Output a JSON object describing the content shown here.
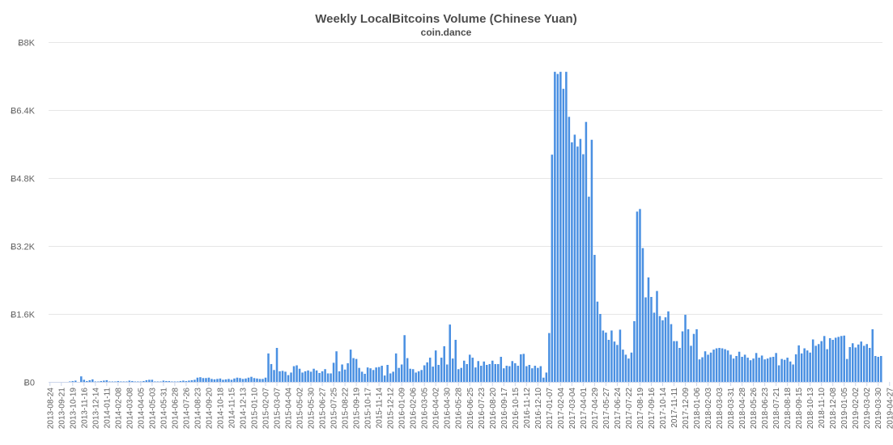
{
  "chart_data": {
    "type": "bar",
    "title": "Weekly LocalBitcoins Volume (Chinese Yuan)",
    "subtitle": "coin.dance",
    "color": "#4a90e2",
    "ylim": [
      0,
      8000
    ],
    "y_ticks": [
      0,
      1600,
      3200,
      4800,
      6400,
      8000
    ],
    "y_tick_labels": [
      "Ƀ0",
      "Ƀ1.6K",
      "Ƀ3.2K",
      "Ƀ4.8K",
      "Ƀ6.4K",
      "Ƀ8K"
    ],
    "x_labels": [
      "2013-08-24",
      "2013-09-21",
      "2013-10-19",
      "2013-11-16",
      "2013-12-14",
      "2014-01-11",
      "2014-02-08",
      "2014-03-08",
      "2014-04-05",
      "2014-05-03",
      "2014-05-31",
      "2014-06-28",
      "2014-07-26",
      "2014-08-23",
      "2014-09-20",
      "2014-10-18",
      "2014-11-15",
      "2014-12-13",
      "2015-01-10",
      "2015-02-07",
      "2015-03-07",
      "2015-04-04",
      "2015-05-02",
      "2015-05-30",
      "2015-06-27",
      "2015-07-25",
      "2015-08-22",
      "2015-09-19",
      "2015-10-17",
      "2015-11-14",
      "2015-12-12",
      "2016-01-09",
      "2016-02-06",
      "2016-03-05",
      "2016-04-02",
      "2016-04-30",
      "2016-05-28",
      "2016-06-25",
      "2016-07-23",
      "2016-08-20",
      "2016-09-17",
      "2016-10-15",
      "2016-11-12",
      "2016-12-10",
      "2017-01-07",
      "2017-02-04",
      "2017-03-04",
      "2017-04-01",
      "2017-04-29",
      "2017-05-27",
      "2017-06-24",
      "2017-07-22",
      "2017-08-19",
      "2017-09-16",
      "2017-10-14",
      "2017-11-11",
      "2017-12-09",
      "2018-01-06",
      "2018-02-03",
      "2018-03-03",
      "2018-03-31",
      "2018-04-28",
      "2018-05-26",
      "2018-06-23",
      "2018-07-21",
      "2018-08-18",
      "2018-09-15",
      "2018-10-13",
      "2018-11-10",
      "2018-12-08",
      "2019-01-05",
      "2019-02-02",
      "2019-03-02",
      "2019-03-30",
      "2019-04-27"
    ],
    "weekly_values": [
      0,
      0,
      0,
      0,
      0,
      0,
      0,
      10,
      20,
      30,
      0,
      130,
      50,
      20,
      40,
      60,
      10,
      10,
      20,
      30,
      40,
      10,
      10,
      10,
      20,
      10,
      10,
      10,
      30,
      20,
      10,
      10,
      10,
      20,
      40,
      50,
      50,
      10,
      10,
      10,
      30,
      20,
      20,
      10,
      10,
      10,
      20,
      30,
      20,
      30,
      40,
      50,
      100,
      110,
      90,
      90,
      100,
      70,
      60,
      70,
      80,
      50,
      60,
      70,
      50,
      80,
      100,
      90,
      70,
      80,
      100,
      120,
      90,
      80,
      70,
      70,
      100,
      670,
      420,
      280,
      800,
      250,
      260,
      240,
      160,
      220,
      370,
      390,
      310,
      220,
      250,
      270,
      240,
      310,
      270,
      210,
      250,
      300,
      200,
      200,
      450,
      720,
      250,
      410,
      290,
      440,
      760,
      560,
      540,
      330,
      240,
      190,
      340,
      320,
      280,
      340,
      350,
      380,
      150,
      400,
      200,
      240,
      670,
      330,
      410,
      1100,
      560,
      310,
      300,
      220,
      250,
      280,
      390,
      460,
      570,
      360,
      740,
      400,
      570,
      840,
      410,
      1350,
      550,
      990,
      300,
      330,
      500,
      420,
      640,
      570,
      340,
      490,
      380,
      480,
      400,
      420,
      500,
      420,
      420,
      590,
      320,
      380,
      370,
      490,
      440,
      380,
      650,
      660,
      370,
      400,
      320,
      380,
      330,
      370,
      100,
      220,
      1150,
      5350,
      7300,
      7250,
      7300,
      6900,
      7300,
      6240,
      5640,
      5820,
      5540,
      5720,
      5360,
      6120,
      4360,
      5700,
      2990,
      1890,
      1600,
      1210,
      1160,
      990,
      1210,
      950,
      870,
      1230,
      760,
      640,
      550,
      690,
      1430,
      4010,
      4070,
      3150,
      1990,
      2460,
      2000,
      1630,
      2140,
      1550,
      1450,
      1520,
      1660,
      1360,
      960,
      960,
      800,
      1190,
      1580,
      1240,
      850,
      1130,
      1240,
      530,
      580,
      720,
      640,
      690,
      760,
      790,
      800,
      790,
      770,
      740,
      640,
      550,
      610,
      710,
      590,
      640,
      570,
      510,
      550,
      680,
      570,
      620,
      530,
      550,
      580,
      590,
      680,
      390,
      540,
      520,
      570,
      480,
      410,
      650,
      860,
      670,
      790,
      740,
      690,
      1000,
      850,
      890,
      960,
      1080,
      770,
      1030,
      990,
      1040,
      1060,
      1080,
      1090,
      540,
      820,
      910,
      810,
      880,
      950,
      850,
      890,
      800,
      1240,
      610,
      590,
      610
    ]
  }
}
